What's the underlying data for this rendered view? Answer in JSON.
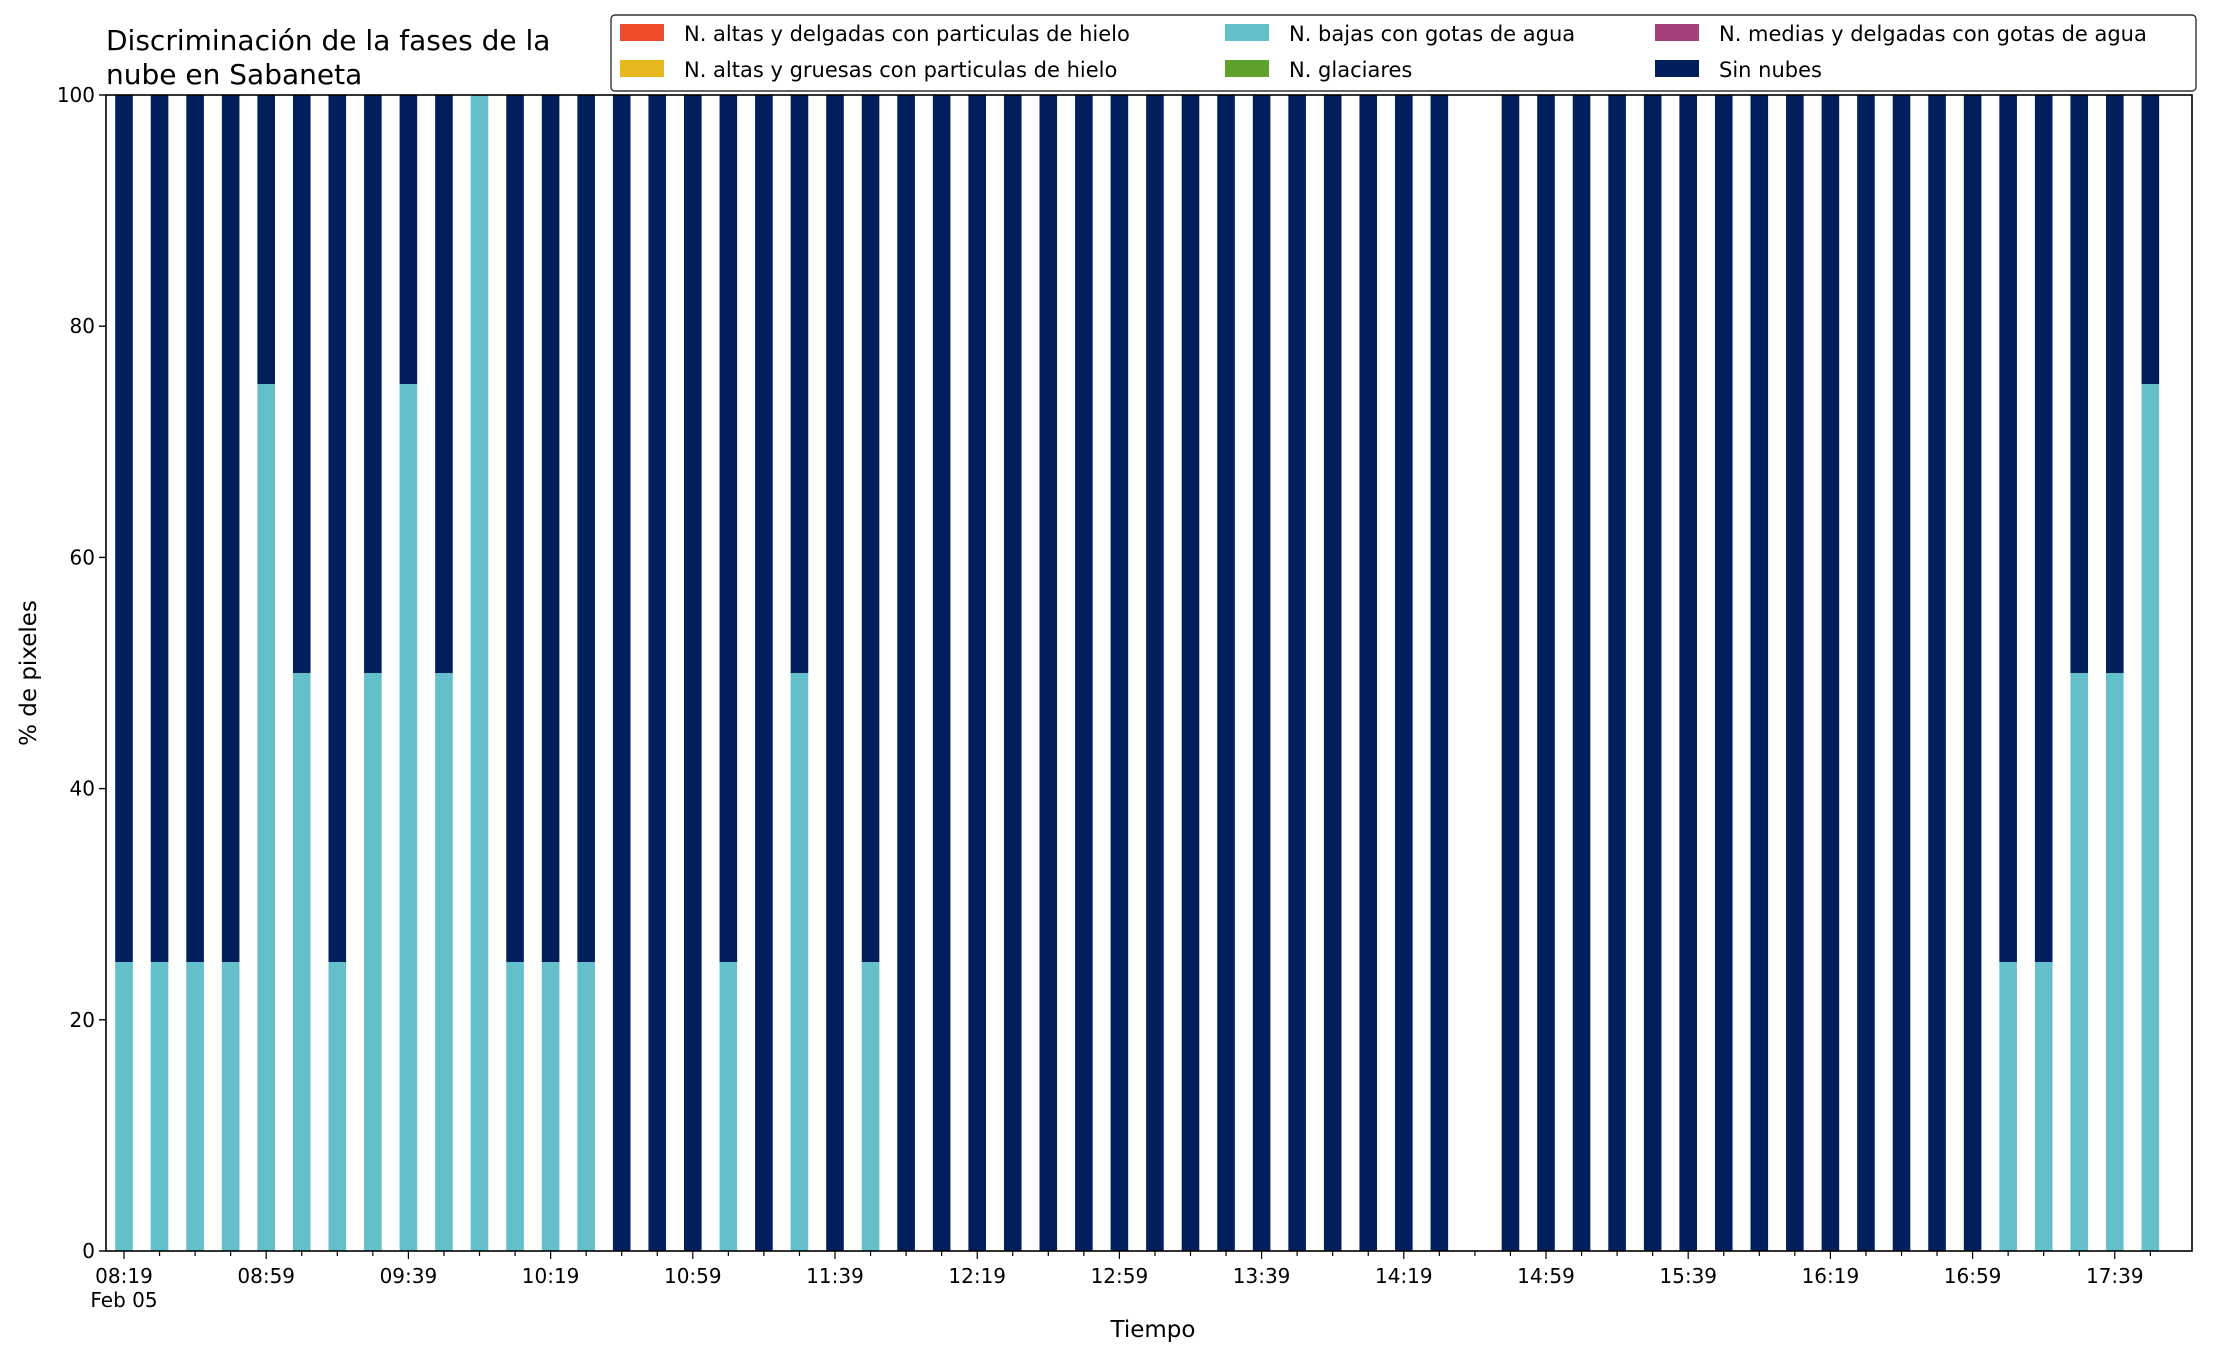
{
  "chart_data": {
    "type": "bar",
    "stacked": true,
    "title_lines": [
      "Discriminación de la fases de la",
      "nube en Sabaneta"
    ],
    "xlabel": "Tiempo",
    "ylabel": "% de pixeles",
    "ylim": [
      0,
      100
    ],
    "yticks": [
      0,
      20,
      40,
      60,
      80,
      100
    ],
    "grid": false,
    "legend_position": "top-right",
    "x_start_label": "08:19",
    "x_date_label": "Feb 05",
    "x_tick_labels": [
      "08:19",
      "08:59",
      "09:39",
      "10:19",
      "10:59",
      "11:39",
      "12:19",
      "12:59",
      "13:39",
      "14:19",
      "14:59",
      "15:39",
      "16:19",
      "16:59",
      "17:39"
    ],
    "x": [
      "08:19",
      "08:29",
      "08:39",
      "08:49",
      "08:59",
      "09:09",
      "09:19",
      "09:29",
      "09:39",
      "09:49",
      "09:59",
      "10:09",
      "10:19",
      "10:29",
      "10:39",
      "10:49",
      "10:59",
      "11:09",
      "11:19",
      "11:29",
      "11:39",
      "11:49",
      "11:59",
      "12:09",
      "12:19",
      "12:29",
      "12:39",
      "12:49",
      "12:59",
      "13:09",
      "13:19",
      "13:29",
      "13:39",
      "13:49",
      "13:59",
      "14:09",
      "14:19",
      "14:29",
      "14:39",
      "14:49",
      "14:59",
      "15:09",
      "15:19",
      "15:29",
      "15:39",
      "15:49",
      "15:59",
      "16:09",
      "16:19",
      "16:29",
      "16:39",
      "16:49",
      "16:59",
      "17:09",
      "17:19",
      "17:29",
      "17:39",
      "17:49"
    ],
    "series": [
      {
        "name": "N. altas y delgadas con particulas de hielo",
        "color": "#ee4b2b",
        "values": [
          0,
          0,
          0,
          0,
          0,
          0,
          0,
          0,
          0,
          0,
          0,
          0,
          0,
          0,
          0,
          0,
          0,
          0,
          0,
          0,
          0,
          0,
          0,
          0,
          0,
          0,
          0,
          0,
          0,
          0,
          0,
          0,
          0,
          0,
          0,
          0,
          0,
          0,
          null,
          0,
          0,
          0,
          0,
          0,
          0,
          0,
          0,
          0,
          0,
          0,
          0,
          0,
          0,
          0,
          0,
          0,
          0,
          0
        ]
      },
      {
        "name": "N. altas y gruesas con particulas de hielo",
        "color": "#e6b81e",
        "values": [
          0,
          0,
          0,
          0,
          0,
          0,
          0,
          0,
          0,
          0,
          0,
          0,
          0,
          0,
          0,
          0,
          0,
          0,
          0,
          0,
          0,
          0,
          0,
          0,
          0,
          0,
          0,
          0,
          0,
          0,
          0,
          0,
          0,
          0,
          0,
          0,
          0,
          0,
          null,
          0,
          0,
          0,
          0,
          0,
          0,
          0,
          0,
          0,
          0,
          0,
          0,
          0,
          0,
          0,
          0,
          0,
          0,
          0
        ]
      },
      {
        "name": "N. bajas con gotas de agua",
        "color": "#63bfc9",
        "values": [
          25,
          25,
          25,
          25,
          75,
          50,
          25,
          50,
          75,
          50,
          100,
          25,
          25,
          25,
          0,
          0,
          0,
          25,
          0,
          50,
          0,
          25,
          0,
          0,
          0,
          0,
          0,
          0,
          0,
          0,
          0,
          0,
          0,
          0,
          0,
          0,
          0,
          0,
          null,
          0,
          0,
          0,
          0,
          0,
          0,
          0,
          0,
          0,
          0,
          0,
          0,
          0,
          0,
          25,
          25,
          50,
          50,
          75
        ]
      },
      {
        "name": "N. glaciares",
        "color": "#5ea02c",
        "values": [
          0,
          0,
          0,
          0,
          0,
          0,
          0,
          0,
          0,
          0,
          0,
          0,
          0,
          0,
          0,
          0,
          0,
          0,
          0,
          0,
          0,
          0,
          0,
          0,
          0,
          0,
          0,
          0,
          0,
          0,
          0,
          0,
          0,
          0,
          0,
          0,
          0,
          0,
          null,
          0,
          0,
          0,
          0,
          0,
          0,
          0,
          0,
          0,
          0,
          0,
          0,
          0,
          0,
          0,
          0,
          0,
          0,
          0
        ]
      },
      {
        "name": "N. medias y delgadas con gotas de agua",
        "color": "#a3427a",
        "values": [
          0,
          0,
          0,
          0,
          0,
          0,
          0,
          0,
          0,
          0,
          0,
          0,
          0,
          0,
          0,
          0,
          0,
          0,
          0,
          0,
          0,
          0,
          0,
          0,
          0,
          0,
          0,
          0,
          0,
          0,
          0,
          0,
          0,
          0,
          0,
          0,
          0,
          0,
          null,
          0,
          0,
          0,
          0,
          0,
          0,
          0,
          0,
          0,
          0,
          0,
          0,
          0,
          0,
          0,
          0,
          0,
          0,
          0
        ]
      },
      {
        "name": "Sin nubes",
        "color": "#001f5c",
        "values": [
          75,
          75,
          75,
          75,
          25,
          50,
          75,
          50,
          25,
          50,
          0,
          75,
          75,
          75,
          100,
          100,
          100,
          75,
          100,
          50,
          100,
          75,
          100,
          100,
          100,
          100,
          100,
          100,
          100,
          100,
          100,
          100,
          100,
          100,
          100,
          100,
          100,
          100,
          null,
          100,
          100,
          100,
          100,
          100,
          100,
          100,
          100,
          100,
          100,
          100,
          100,
          100,
          100,
          75,
          75,
          50,
          50,
          25
        ]
      }
    ]
  }
}
